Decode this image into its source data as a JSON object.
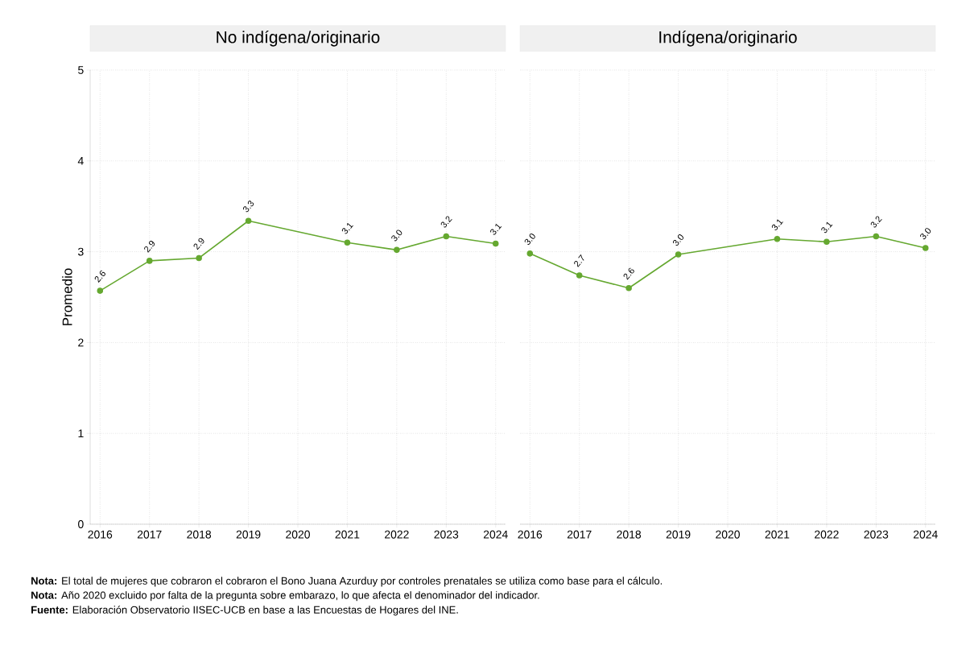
{
  "chart_data": [
    {
      "type": "line",
      "title": "No indígena/originario",
      "ylabel": "Promedio",
      "x": [
        2016,
        2017,
        2018,
        2019,
        2021,
        2022,
        2023,
        2024
      ],
      "values": [
        2.57,
        2.9,
        2.93,
        3.34,
        3.1,
        3.02,
        3.17,
        3.09
      ],
      "value_labels": [
        "2.6",
        "2.9",
        "2.9",
        "3.3",
        "3.1",
        "3.0",
        "3.2",
        "3.1"
      ],
      "color": "#65a830",
      "marker": "circle",
      "xlim": [
        2015.8,
        2024.2
      ],
      "ylim": [
        0,
        5
      ],
      "xticks": [
        2016,
        2017,
        2018,
        2019,
        2020,
        2021,
        2022,
        2023,
        2024
      ],
      "yticks": [
        0,
        1,
        2,
        3,
        4,
        5
      ],
      "grid": true,
      "annotations": [
        "**Nota:** El total de mujeres que cobraron el cobraron el Bono Juana Azurduy por controles prenatales se utiliza como base para el cálculo.",
        "**Nota:** Año 2020 excluido por falta de la pregunta sobre embarazo, lo que afecta el denominador del indicador.",
        "**Fuente:** Elaboración Observatorio IISEC-UCB en base a las Encuestas de Hogares del INE."
      ]
    },
    {
      "type": "line",
      "title": "Indígena/originario",
      "x": [
        2016,
        2017,
        2018,
        2019,
        2021,
        2022,
        2023,
        2024
      ],
      "values": [
        2.98,
        2.74,
        2.6,
        2.97,
        3.14,
        3.11,
        3.17,
        3.04
      ],
      "value_labels": [
        "3.0",
        "2.7",
        "2.6",
        "3.0",
        "3.1",
        "3.1",
        "3.2",
        "3.0"
      ],
      "color": "#65a830",
      "marker": "circle",
      "xlim": [
        2015.8,
        2024.2
      ],
      "ylim": [
        0,
        5
      ],
      "xticks": [
        2016,
        2017,
        2018,
        2019,
        2020,
        2021,
        2022,
        2023,
        2024
      ],
      "yticks": [
        0,
        1,
        2,
        3,
        4,
        5
      ],
      "grid": true,
      "tick_labels": "x"
    }
  ]
}
